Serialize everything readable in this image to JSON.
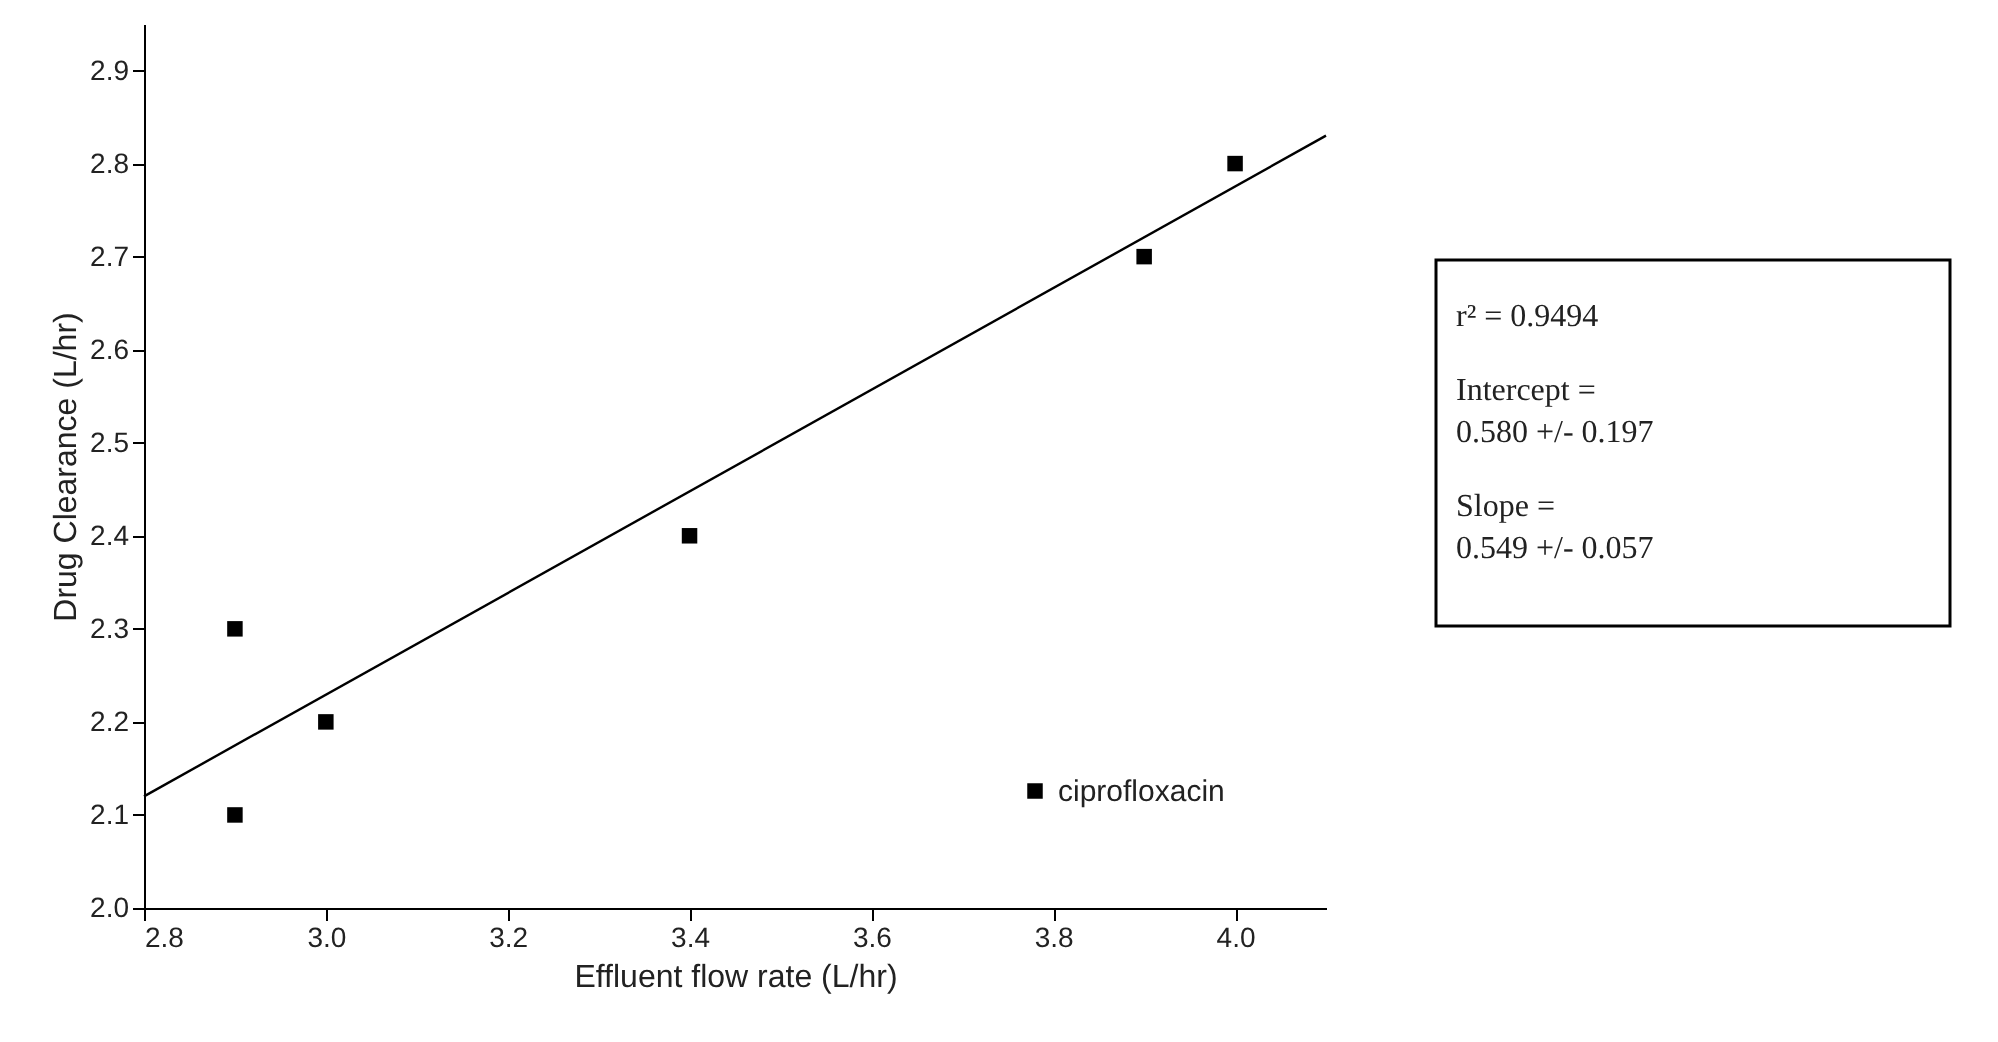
{
  "chart_data": {
    "type": "scatter",
    "xlabel": "Effluent flow rate (L/hr)",
    "ylabel": "Drug Clearance (L/hr)",
    "xlim": [
      2.8,
      4.1
    ],
    "xticks": [
      {
        "value": 2.8,
        "label": "2.8"
      },
      {
        "value": 3.0,
        "label": "3.0"
      },
      {
        "value": 3.2,
        "label": "3.2"
      },
      {
        "value": 3.4,
        "label": "3.4"
      },
      {
        "value": 3.6,
        "label": "3.6"
      },
      {
        "value": 3.8,
        "label": "3.8"
      },
      {
        "value": 4.0,
        "label": "4.0"
      }
    ],
    "ylim": [
      2.0,
      2.95
    ],
    "yticks": [
      {
        "value": 2.0,
        "label": "2.0"
      },
      {
        "value": 2.1,
        "label": "2.1"
      },
      {
        "value": 2.2,
        "label": "2.2"
      },
      {
        "value": 2.3,
        "label": "2.3"
      },
      {
        "value": 2.4,
        "label": "2.4"
      },
      {
        "value": 2.5,
        "label": "2.5"
      },
      {
        "value": 2.6,
        "label": "2.6"
      },
      {
        "value": 2.7,
        "label": "2.7"
      },
      {
        "value": 2.8,
        "label": "2.8"
      },
      {
        "value": 2.9,
        "label": "2.9"
      }
    ],
    "series": [
      {
        "name": "ciprofloxacin",
        "color": "#000000",
        "x": [
          2.9,
          2.9,
          3.0,
          3.4,
          3.9,
          4.0
        ],
        "values": [
          2.3,
          2.1,
          2.2,
          2.4,
          2.7,
          2.8
        ]
      },
      {
        "type": "line",
        "marker": "none",
        "color": "#000000",
        "x": [
          2.8,
          4.1
        ],
        "values": [
          2.12,
          2.83
        ]
      }
    ],
    "marker": "square",
    "grid": false,
    "legend": "bottom right",
    "annotations": [
      "r² = 0.9494",
      "Intercept =\n0.580 +/- 0.197",
      "Slope =\n0.549 +/- 0.057"
    ]
  }
}
